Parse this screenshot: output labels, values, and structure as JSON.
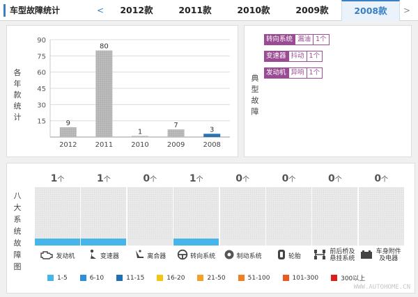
{
  "header": {
    "title": "车型故障统计",
    "prev_arrow": "<",
    "next_arrow": ">",
    "tabs": [
      {
        "label": "2012款",
        "active": false
      },
      {
        "label": "2011款",
        "active": false
      },
      {
        "label": "2010款",
        "active": false
      },
      {
        "label": "2009款",
        "active": false
      },
      {
        "label": "2008款",
        "active": true
      }
    ]
  },
  "year_panel": {
    "side_label": "各年款统计",
    "chart_data": {
      "type": "bar",
      "categories": [
        "2012",
        "2011",
        "2010",
        "2009",
        "2008"
      ],
      "values": [
        9,
        80,
        1,
        7,
        3
      ],
      "highlight": "2008",
      "ylim": [
        0,
        90
      ],
      "yticks": [
        15,
        30,
        45,
        60,
        75,
        90
      ],
      "colors": {
        "bar": "#b3b3b3",
        "highlight": "#2a72b0"
      }
    }
  },
  "typical_panel": {
    "side_label": "典型故障",
    "faults": [
      {
        "system": "转向系统",
        "symptom": "漏油",
        "count": "1个"
      },
      {
        "system": "变速器",
        "symptom": "抖动",
        "count": "1个"
      },
      {
        "system": "发动机",
        "symptom": "异响",
        "count": "1个"
      }
    ],
    "accent_color": "#9b4b93"
  },
  "systems_panel": {
    "side_label": "八大系统故障图",
    "unit": "个",
    "systems": [
      {
        "name": "发动机",
        "count": "1",
        "icon": "engine-icon",
        "level_color": "#46b5ea"
      },
      {
        "name": "变速器",
        "count": "1",
        "icon": "gearshift-icon",
        "level_color": "#46b5ea"
      },
      {
        "name": "离合器",
        "count": "0",
        "icon": "clutch-pedal-icon",
        "level_color": ""
      },
      {
        "name": "转向系统",
        "count": "1",
        "icon": "steering-wheel-icon",
        "level_color": "#46b5ea"
      },
      {
        "name": "制动系统",
        "count": "0",
        "icon": "brake-disc-icon",
        "level_color": ""
      },
      {
        "name": "轮胎",
        "count": "0",
        "icon": "tire-icon",
        "level_color": ""
      },
      {
        "name": "前后桥及悬挂系统",
        "count": "0",
        "icon": "axle-icon",
        "level_color": ""
      },
      {
        "name": "车身附件及电器",
        "count": "0",
        "icon": "car-battery-icon",
        "level_color": ""
      }
    ],
    "legend": [
      {
        "label": "1-5",
        "color": "#46b5ea"
      },
      {
        "label": "6-10",
        "color": "#2f8fd8"
      },
      {
        "label": "11-15",
        "color": "#1f6fb2"
      },
      {
        "label": "16-20",
        "color": "#f2c511"
      },
      {
        "label": "21-50",
        "color": "#f0a22b"
      },
      {
        "label": "51-100",
        "color": "#ee7f24"
      },
      {
        "label": "101-300",
        "color": "#e85a1f"
      },
      {
        "label": "300以上",
        "color": "#d9201f"
      }
    ]
  },
  "watermark": "WWW.AUTOHOME.CN"
}
